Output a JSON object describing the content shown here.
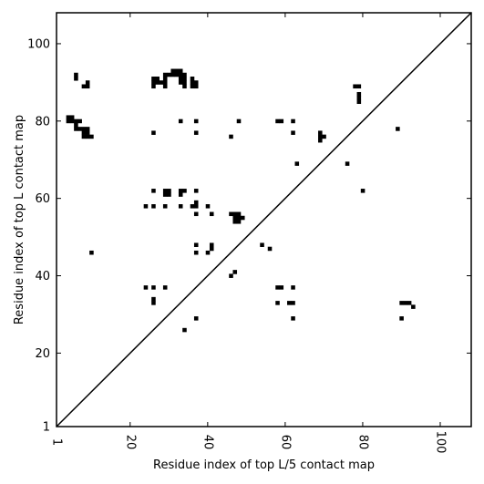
{
  "chart_data": {
    "type": "scatter",
    "title": "",
    "xlabel": "Residue index of top L/5 contact map",
    "ylabel": "Residue index of top L contact map",
    "xlim": [
      1,
      108
    ],
    "ylim": [
      1,
      108
    ],
    "x_ticks": [
      1,
      20,
      40,
      60,
      80,
      100
    ],
    "y_ticks": [
      1,
      20,
      40,
      60,
      80,
      100
    ],
    "grid": false,
    "diagonal": true,
    "marker_color": "#000000",
    "series": [
      {
        "points": [
          [
            6,
            91
          ],
          [
            6,
            92
          ],
          [
            8,
            89
          ],
          [
            9,
            89
          ],
          [
            9,
            90
          ],
          [
            4,
            80
          ],
          [
            4,
            81
          ],
          [
            5,
            80
          ],
          [
            5,
            81
          ],
          [
            6,
            80
          ],
          [
            7,
            80
          ],
          [
            6,
            79
          ],
          [
            6,
            78
          ],
          [
            7,
            78
          ],
          [
            8,
            78
          ],
          [
            9,
            78
          ],
          [
            8,
            77
          ],
          [
            9,
            77
          ],
          [
            8,
            76
          ],
          [
            9,
            76
          ],
          [
            10,
            76
          ],
          [
            26,
            89
          ],
          [
            26,
            90
          ],
          [
            26,
            91
          ],
          [
            27,
            90
          ],
          [
            27,
            91
          ],
          [
            28,
            90
          ],
          [
            29,
            89
          ],
          [
            29,
            90
          ],
          [
            29,
            91
          ],
          [
            29,
            92
          ],
          [
            30,
            92
          ],
          [
            31,
            92
          ],
          [
            31,
            93
          ],
          [
            32,
            92
          ],
          [
            32,
            93
          ],
          [
            33,
            92
          ],
          [
            33,
            93
          ],
          [
            33,
            91
          ],
          [
            33,
            90
          ],
          [
            34,
            90
          ],
          [
            34,
            91
          ],
          [
            34,
            92
          ],
          [
            34,
            89
          ],
          [
            36,
            91
          ],
          [
            36,
            90
          ],
          [
            37,
            90
          ],
          [
            36,
            89
          ],
          [
            37,
            89
          ],
          [
            26,
            77
          ],
          [
            33,
            80
          ],
          [
            37,
            80
          ],
          [
            37,
            77
          ],
          [
            46,
            76
          ],
          [
            48,
            80
          ],
          [
            58,
            80
          ],
          [
            59,
            80
          ],
          [
            62,
            80
          ],
          [
            62,
            77
          ],
          [
            63,
            69
          ],
          [
            69,
            75
          ],
          [
            69,
            76
          ],
          [
            69,
            77
          ],
          [
            70,
            76
          ],
          [
            76,
            69
          ],
          [
            78,
            89
          ],
          [
            79,
            89
          ],
          [
            79,
            87
          ],
          [
            79,
            86
          ],
          [
            79,
            85
          ],
          [
            80,
            62
          ],
          [
            89,
            78
          ],
          [
            26,
            62
          ],
          [
            29,
            62
          ],
          [
            29,
            61
          ],
          [
            30,
            61
          ],
          [
            30,
            62
          ],
          [
            33,
            62
          ],
          [
            33,
            61
          ],
          [
            34,
            62
          ],
          [
            37,
            62
          ],
          [
            24,
            58
          ],
          [
            26,
            58
          ],
          [
            29,
            58
          ],
          [
            33,
            58
          ],
          [
            36,
            58
          ],
          [
            37,
            58
          ],
          [
            37,
            59
          ],
          [
            37,
            56
          ],
          [
            40,
            58
          ],
          [
            41,
            56
          ],
          [
            46,
            56
          ],
          [
            47,
            56
          ],
          [
            47,
            55
          ],
          [
            47,
            54
          ],
          [
            48,
            56
          ],
          [
            48,
            55
          ],
          [
            48,
            54
          ],
          [
            49,
            55
          ],
          [
            37,
            48
          ],
          [
            37,
            46
          ],
          [
            40,
            46
          ],
          [
            41,
            47
          ],
          [
            41,
            48
          ],
          [
            54,
            48
          ],
          [
            56,
            47
          ],
          [
            10,
            46
          ],
          [
            46,
            40
          ],
          [
            47,
            41
          ],
          [
            24,
            37
          ],
          [
            26,
            37
          ],
          [
            29,
            37
          ],
          [
            26,
            34
          ],
          [
            26,
            33
          ],
          [
            34,
            26
          ],
          [
            37,
            29
          ],
          [
            58,
            37
          ],
          [
            59,
            37
          ],
          [
            62,
            37
          ],
          [
            58,
            33
          ],
          [
            61,
            33
          ],
          [
            62,
            33
          ],
          [
            62,
            29
          ],
          [
            90,
            33
          ],
          [
            91,
            33
          ],
          [
            92,
            33
          ],
          [
            93,
            32
          ],
          [
            90,
            29
          ]
        ]
      }
    ]
  }
}
